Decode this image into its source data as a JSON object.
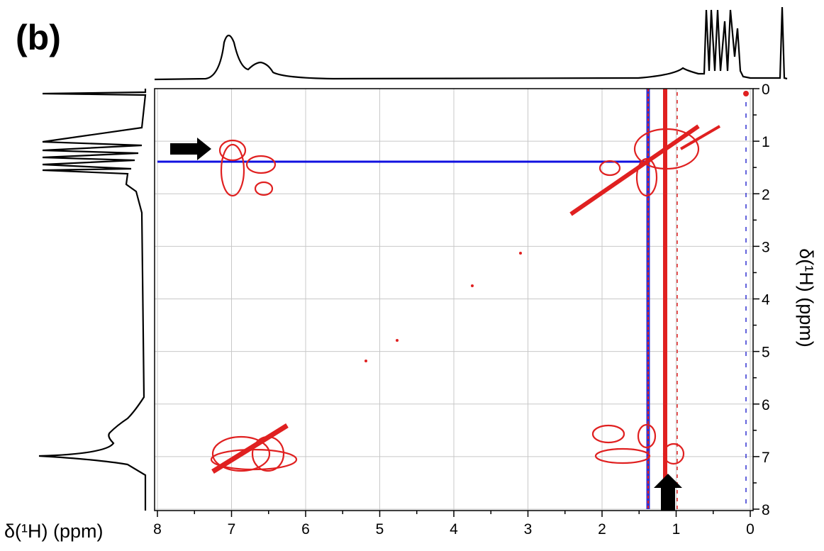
{
  "chart_data": {
    "type": "contour",
    "panel_label": "(b)",
    "x_label": "δ(¹H) (ppm)",
    "y_label": "δ(¹H) (ppm)",
    "xlim": [
      8,
      0
    ],
    "ylim": [
      0,
      8
    ],
    "xticks": [
      8,
      7,
      6,
      5,
      4,
      3,
      2,
      1,
      0
    ],
    "yticks": [
      0,
      1,
      2,
      3,
      4,
      5,
      6,
      7,
      8
    ],
    "grid": true
  }
}
